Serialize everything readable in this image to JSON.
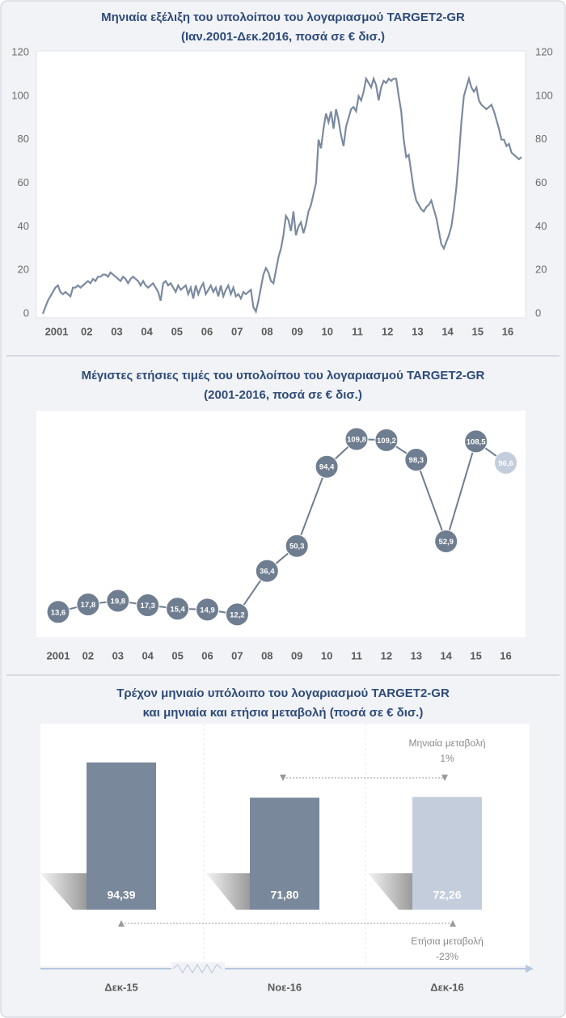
{
  "chart_data": [
    {
      "type": "line",
      "title": "Μηνιαία εξέλιξη του υπολοίπου του λογαριασμού TARGET2-GR",
      "subtitle": "(Ιαν.2001-Δεκ.2016, ποσά σε € δισ.)",
      "categories": [
        "2001",
        null,
        null,
        null,
        null,
        null,
        null,
        null,
        null,
        null,
        null,
        null,
        "02",
        null,
        null,
        null,
        null,
        null,
        null,
        null,
        null,
        null,
        null,
        null,
        "03",
        null,
        null,
        null,
        null,
        null,
        null,
        null,
        null,
        null,
        null,
        null,
        "04",
        null,
        null,
        null,
        null,
        null,
        null,
        null,
        null,
        null,
        null,
        null,
        "05",
        null,
        null,
        null,
        null,
        null,
        null,
        null,
        null,
        null,
        null,
        null,
        "06",
        null,
        null,
        null,
        null,
        null,
        null,
        null,
        null,
        null,
        null,
        null,
        "07",
        null,
        null,
        null,
        null,
        null,
        null,
        null,
        null,
        null,
        null,
        null,
        "08",
        null,
        null,
        null,
        null,
        null,
        null,
        null,
        null,
        null,
        null,
        null,
        "09",
        null,
        null,
        null,
        null,
        null,
        null,
        null,
        null,
        null,
        null,
        null,
        "10",
        null,
        null,
        null,
        null,
        null,
        null,
        null,
        null,
        null,
        null,
        null,
        "11",
        null,
        null,
        null,
        null,
        null,
        null,
        null,
        null,
        null,
        null,
        null,
        "12",
        null,
        null,
        null,
        null,
        null,
        null,
        null,
        null,
        null,
        null,
        null,
        "13",
        null,
        null,
        null,
        null,
        null,
        null,
        null,
        null,
        null,
        null,
        null,
        "14",
        null,
        null,
        null,
        null,
        null,
        null,
        null,
        null,
        null,
        null,
        null,
        "15",
        null,
        null,
        null,
        null,
        null,
        null,
        null,
        null,
        null,
        null,
        null,
        "16",
        null,
        null,
        null,
        null,
        null,
        null,
        null,
        null,
        null,
        null,
        null
      ],
      "values": [
        0,
        3,
        6,
        8,
        10,
        12,
        13,
        10,
        9,
        10,
        9,
        8,
        12,
        12,
        13,
        12,
        13,
        14,
        15,
        14,
        16,
        15,
        17,
        17,
        18,
        18,
        17,
        19,
        18,
        17,
        16,
        15,
        17,
        16,
        14,
        16,
        17,
        16,
        15,
        13,
        15,
        13,
        12,
        13,
        14,
        12,
        10,
        6,
        14,
        15,
        13,
        14,
        12,
        10,
        13,
        11,
        12,
        13,
        9,
        12,
        7,
        13,
        9,
        12,
        14,
        9,
        11,
        13,
        10,
        12,
        8,
        13,
        8,
        11,
        13,
        9,
        12,
        8,
        9,
        7,
        10,
        9,
        10,
        11,
        3,
        1,
        6,
        12,
        18,
        21,
        19,
        15,
        14,
        20,
        26,
        30,
        36,
        45,
        43,
        38,
        47,
        36,
        40,
        42,
        37,
        41,
        47,
        50,
        55,
        60,
        80,
        76,
        85,
        92,
        88,
        93,
        85,
        94,
        89,
        82,
        77,
        86,
        90,
        94,
        95,
        93,
        100,
        98,
        102,
        108,
        106,
        104,
        108,
        105,
        98,
        104,
        107,
        106,
        108,
        107,
        108,
        108,
        100,
        93,
        80,
        72,
        73,
        65,
        57,
        52,
        50,
        48,
        47,
        49,
        50,
        52,
        48,
        44,
        38,
        32,
        30,
        33,
        36,
        40,
        48,
        58,
        72,
        88,
        100,
        104,
        108,
        104,
        102,
        104,
        98,
        96,
        95,
        94,
        95,
        96,
        93,
        89,
        85,
        80,
        80,
        77,
        78,
        74,
        73,
        72,
        71,
        72
      ],
      "color": "#7b8aa0",
      "ylim": [
        0,
        120
      ],
      "yticks": [
        0,
        20,
        40,
        60,
        80,
        100,
        120
      ],
      "y2lim": [
        0,
        120
      ],
      "y2ticks": [
        0,
        20,
        40,
        60,
        80,
        100,
        120
      ],
      "grid": false
    },
    {
      "type": "line",
      "title": "Μέγιστες ετήσιες τιμές του υπολοίπου του λογαριασμού TARGET2-GR",
      "subtitle": "(2001-2016,  ποσά σε € δισ.)",
      "categories": [
        "2001",
        "02",
        "03",
        "04",
        "05",
        "06",
        "07",
        "08",
        "09",
        "10",
        "11",
        "12",
        "13",
        "14",
        "15",
        "16"
      ],
      "values": [
        13.6,
        17.8,
        19.8,
        17.3,
        15.4,
        14.9,
        12.2,
        36.4,
        50.3,
        94.4,
        109.8,
        109.2,
        98.3,
        52.9,
        108.5,
        96.6
      ],
      "value_labels": [
        "13,6",
        "17,8",
        "19,8",
        "17,3",
        "15,4",
        "14,9",
        "12,2",
        "36,4",
        "50,3",
        "94,4",
        "109,8",
        "109,2",
        "98,3",
        "52,9",
        "108,5",
        "96,6"
      ],
      "color": "#6f7d90",
      "point_colors": [
        "#6f7d90",
        "#6f7d90",
        "#6f7d90",
        "#6f7d90",
        "#6f7d90",
        "#6f7d90",
        "#6f7d90",
        "#6f7d90",
        "#6f7d90",
        "#6f7d90",
        "#6f7d90",
        "#6f7d90",
        "#6f7d90",
        "#6f7d90",
        "#6f7d90",
        "#c3cddb"
      ]
    },
    {
      "type": "bar",
      "title": "Τρέχον μηνιαίο υπόλοιπο του λογαριασμού TARGET2-GR",
      "subtitle": "και μηνιαία και ετήσια μεταβολή (ποσά σε € δισ.)",
      "categories": [
        "Δεκ-15",
        "Νοε-16",
        "Δεκ-16"
      ],
      "values": [
        94.39,
        71.8,
        72.26
      ],
      "value_labels": [
        "94,39",
        "71,80",
        "72,26"
      ],
      "colors": [
        "#7a889b",
        "#7a889b",
        "#c3cddb"
      ],
      "annotations": [
        {
          "text": "Μηνιαία μεταβολή",
          "change": "1%"
        },
        {
          "text": "Ετήσια μεταβολή",
          "change": "-23%"
        }
      ]
    }
  ]
}
